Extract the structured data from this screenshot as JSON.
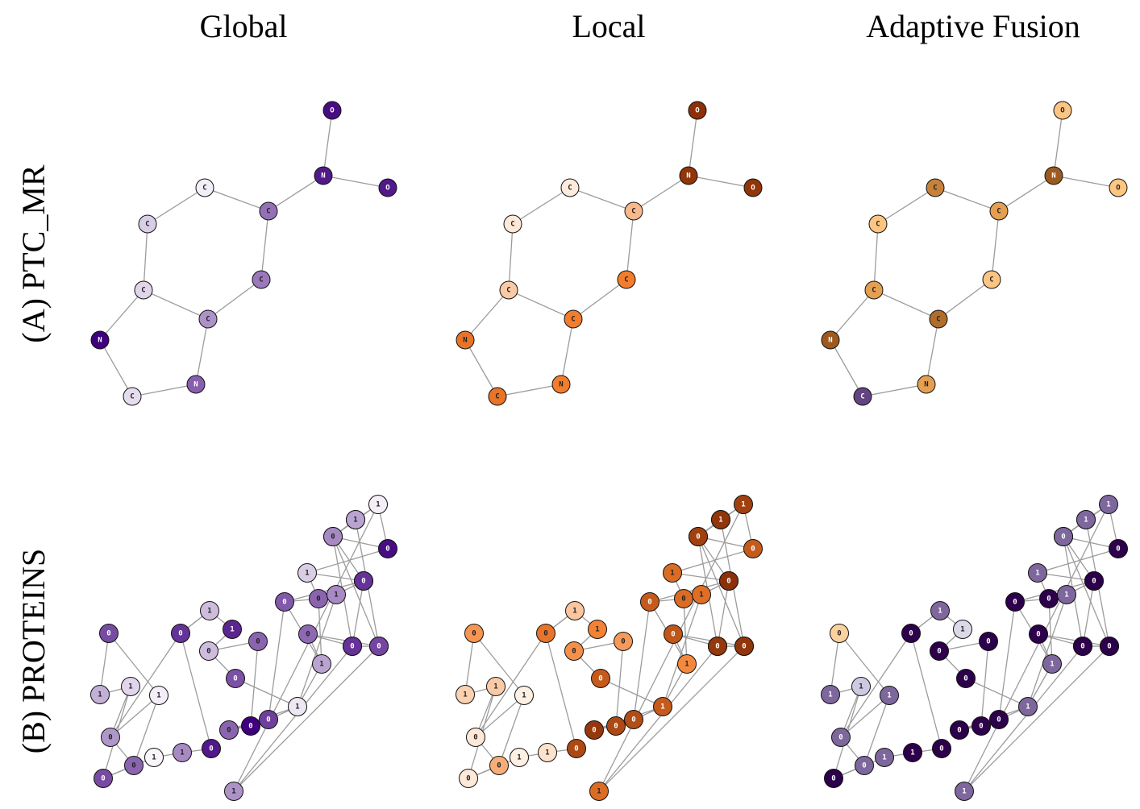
{
  "column_titles": [
    "Global",
    "Local",
    "Adaptive Fusion"
  ],
  "row_titles": [
    "(A) PTC_MR",
    "(B) PROTEINS"
  ],
  "ptc_mr": {
    "labels": [
      "O",
      "N",
      "O",
      "C",
      "C",
      "C",
      "C",
      "C",
      "C",
      "N",
      "N",
      "C"
    ],
    "edges": [
      [
        0,
        1
      ],
      [
        1,
        2
      ],
      [
        1,
        4
      ],
      [
        3,
        4
      ],
      [
        3,
        5
      ],
      [
        5,
        6
      ],
      [
        4,
        7
      ],
      [
        7,
        8
      ],
      [
        6,
        8
      ],
      [
        6,
        9
      ],
      [
        9,
        11
      ],
      [
        11,
        10
      ],
      [
        10,
        8
      ]
    ],
    "shades": {
      "global": [
        0.95,
        0.9,
        0.9,
        0.05,
        0.55,
        0.18,
        0.15,
        0.52,
        0.42,
        1.0,
        0.62,
        0.12
      ],
      "local": [
        0.95,
        0.92,
        0.92,
        0.04,
        0.25,
        0.05,
        0.18,
        0.5,
        0.5,
        0.55,
        0.5,
        0.55
      ],
      "adaptive": [
        0.3,
        0.06,
        0.3,
        0.14,
        0.2,
        0.3,
        0.2,
        0.3,
        0.1,
        0.06,
        0.2,
        0.9
      ]
    }
  },
  "proteins": {
    "labels": [
      "0",
      "1",
      "1",
      "0",
      "1",
      "0",
      "0",
      "1",
      "1",
      "0",
      "0",
      "1",
      "1",
      "0",
      "0",
      "0",
      "0",
      "0",
      "0",
      "1",
      "1",
      "0",
      "0",
      "0",
      "1",
      "1",
      "1",
      "0",
      "0",
      "1",
      "0",
      "0",
      "1",
      "1",
      "0",
      "0",
      "0",
      "0",
      "1"
    ],
    "edges": [
      [
        0,
        1
      ],
      [
        1,
        2
      ],
      [
        2,
        3
      ],
      [
        3,
        4
      ],
      [
        4,
        5
      ],
      [
        5,
        6
      ],
      [
        6,
        7
      ],
      [
        7,
        8
      ],
      [
        8,
        9
      ],
      [
        3,
        10
      ],
      [
        10,
        11
      ],
      [
        11,
        12
      ],
      [
        12,
        13
      ],
      [
        13,
        14
      ],
      [
        13,
        15
      ],
      [
        14,
        17
      ],
      [
        16,
        17
      ],
      [
        16,
        18
      ],
      [
        16,
        19
      ],
      [
        15,
        19
      ],
      [
        19,
        20
      ],
      [
        20,
        21
      ],
      [
        20,
        22
      ],
      [
        20,
        23
      ],
      [
        19,
        24
      ],
      [
        23,
        24
      ],
      [
        23,
        25
      ],
      [
        22,
        26
      ],
      [
        21,
        27
      ],
      [
        21,
        28
      ],
      [
        27,
        29
      ],
      [
        28,
        29
      ],
      [
        29,
        30
      ],
      [
        29,
        31
      ],
      [
        25,
        30
      ],
      [
        30,
        32
      ],
      [
        31,
        32
      ],
      [
        32,
        33
      ],
      [
        31,
        34
      ],
      [
        32,
        34
      ],
      [
        34,
        35
      ],
      [
        33,
        36
      ],
      [
        35,
        36
      ],
      [
        33,
        37
      ],
      [
        36,
        37
      ],
      [
        37,
        38
      ],
      [
        31,
        38
      ],
      [
        18,
        19
      ],
      [
        10,
        9
      ],
      [
        25,
        26
      ],
      [
        24,
        26
      ],
      [
        0,
        4
      ],
      [
        2,
        6
      ],
      [
        18,
        22
      ],
      [
        22,
        23
      ],
      [
        27,
        28
      ],
      [
        3,
        5
      ],
      [
        11,
        10
      ]
    ],
    "shades": {
      "global": [
        0.7,
        0.3,
        0.15,
        0.4,
        0.05,
        0.6,
        0.7,
        0.02,
        0.45,
        0.9,
        0.8,
        0.25,
        0.85,
        0.25,
        0.6,
        0.68,
        0.6,
        1.0,
        0.75,
        0.08,
        0.35,
        0.58,
        0.65,
        0.6,
        0.45,
        0.18,
        0.12,
        0.85,
        0.95,
        0.1,
        0.95,
        0.35,
        0.05,
        0.42,
        0.45,
        0.8,
        0.8,
        0.72,
        0.35
      ],
      "local": [
        0.4,
        0.15,
        0.18,
        0.05,
        0.02,
        0.3,
        0.05,
        0.02,
        0.08,
        0.8,
        0.55,
        0.2,
        0.48,
        0.42,
        0.38,
        0.7,
        0.9,
        0.8,
        0.78,
        0.7,
        0.45,
        0.72,
        0.7,
        0.6,
        0.58,
        0.6,
        0.7,
        0.72,
        0.55,
        0.62,
        0.7,
        0.6,
        0.85,
        0.6,
        0.85,
        0.95,
        0.9,
        0.92,
        0.92
      ],
      "adaptive": [
        0.35,
        0.85,
        0.65,
        0.85,
        0.85,
        0.85,
        1.0,
        0.85,
        1.0,
        1.0,
        1.0,
        0.85,
        0.6,
        1.0,
        1.0,
        1.0,
        1.0,
        1.0,
        1.0,
        0.85,
        0.85,
        1.0,
        1.0,
        1.0,
        0.85,
        0.85,
        0.85,
        1.0,
        1.0,
        0.85,
        1.0,
        1.0,
        0.85,
        0.85,
        0.85,
        1.0,
        1.0,
        1.0,
        0.85
      ]
    }
  },
  "colormaps": {
    "global": [
      "#fcfbfd",
      "#3f007d"
    ],
    "local": [
      "#fff5eb",
      "#f27d2c",
      "#7f2704"
    ],
    "adaptive_orange_purple": [
      "#7f3b08",
      "#fdb863",
      "#f7f7f7",
      "#b2abd2",
      "#2d004b"
    ]
  }
}
